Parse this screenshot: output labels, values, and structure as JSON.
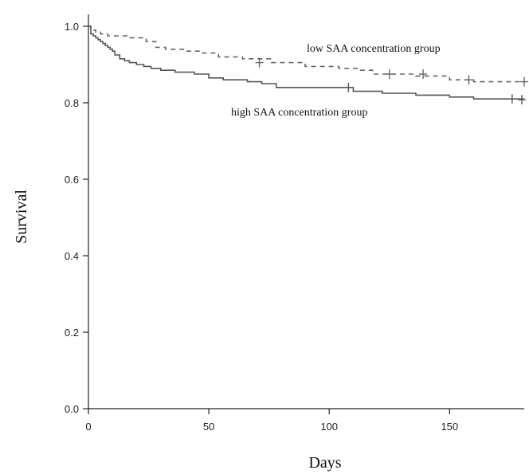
{
  "chart_data": {
    "type": "line",
    "title": "",
    "xlabel": "Days",
    "ylabel": "Survival",
    "xlim": [
      0,
      181
    ],
    "ylim": [
      0,
      1.0
    ],
    "x_ticks": [
      0,
      50,
      100,
      150
    ],
    "y_ticks": [
      0.0,
      0.2,
      0.4,
      0.6,
      0.8,
      1.0
    ],
    "x_tick_labels": [
      "0",
      "50",
      "100",
      "150"
    ],
    "y_tick_labels": [
      "0.0",
      "0.2",
      "0.4",
      "0.6",
      "0.8",
      "1.0"
    ],
    "grid": false,
    "series": [
      {
        "name": "low SAA concentration group",
        "line_style": "dashed",
        "step": true,
        "x": [
          0,
          1,
          3,
          5,
          8,
          16,
          24,
          28,
          32,
          40,
          46,
          54,
          64,
          76,
          90,
          104,
          112,
          118,
          136,
          150,
          160,
          181
        ],
        "y": [
          1.0,
          0.99,
          0.985,
          0.98,
          0.975,
          0.97,
          0.96,
          0.945,
          0.94,
          0.935,
          0.93,
          0.92,
          0.915,
          0.905,
          0.895,
          0.89,
          0.885,
          0.875,
          0.87,
          0.86,
          0.855,
          0.855
        ],
        "censor_x": [
          71,
          125,
          139,
          158,
          181
        ],
        "censor_y": [
          0.905,
          0.875,
          0.875,
          0.86,
          0.855
        ]
      },
      {
        "name": "high SAA concentration group",
        "line_style": "solid",
        "step": true,
        "x": [
          0,
          1,
          2,
          3,
          4,
          5,
          6,
          7,
          8,
          9,
          10,
          11,
          13,
          15,
          17,
          20,
          23,
          26,
          30,
          36,
          44,
          50,
          56,
          66,
          72,
          78,
          110,
          122,
          136,
          150,
          160,
          181
        ],
        "y": [
          1.0,
          0.98,
          0.975,
          0.97,
          0.965,
          0.96,
          0.955,
          0.95,
          0.945,
          0.94,
          0.935,
          0.925,
          0.915,
          0.91,
          0.905,
          0.9,
          0.895,
          0.89,
          0.885,
          0.88,
          0.875,
          0.865,
          0.86,
          0.855,
          0.85,
          0.84,
          0.83,
          0.825,
          0.82,
          0.815,
          0.81,
          0.81
        ],
        "censor_x": [
          108,
          176,
          180
        ],
        "censor_y": [
          0.84,
          0.81,
          0.808
        ]
      }
    ],
    "colors": {
      "low": "#666666",
      "high": "#555555",
      "axis": "#222222"
    }
  }
}
